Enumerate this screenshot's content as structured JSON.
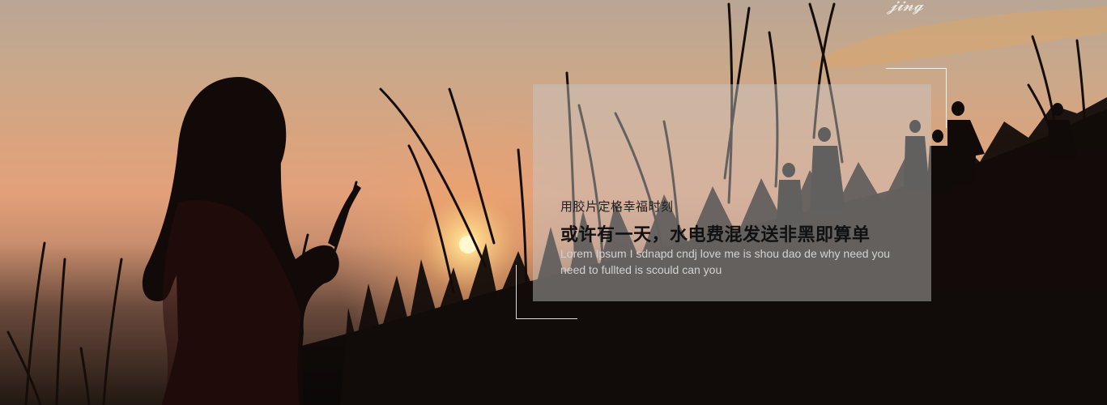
{
  "hero": {
    "image_alt": "sunset silhouette of a girl holding grass",
    "caption": {
      "subtitle": "用胶片定格幸福时刻",
      "title": "或许有一天，水电费混发送非黑即算单",
      "description": "Lorem Ipsum I sdnapd cndj love me  is shou dao de why need you need to fullted is scould can you"
    }
  },
  "colors": {
    "sky_top": "#b9a695",
    "sky_mid": "#e2a07a",
    "sun": "#fff6c8",
    "silhouette": "#120c09",
    "caption_box": "rgba(200,200,200,0.45)"
  }
}
